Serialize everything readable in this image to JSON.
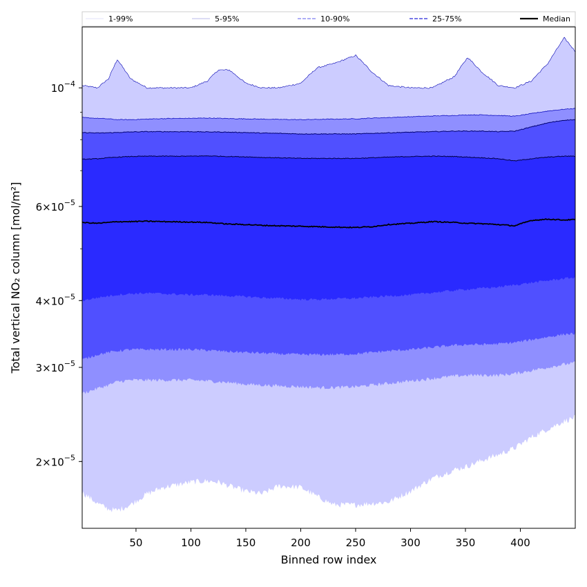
{
  "chart_data": {
    "type": "area",
    "xlabel": "Binned row index",
    "ylabel": "Total vertical NO₂ column [mol/m²]",
    "xlim": [
      1,
      450
    ],
    "ylim": [
      1.5e-05,
      0.00013
    ],
    "yscale": "log",
    "grid": false,
    "legend_position": "top",
    "x_ticks": [
      50,
      100,
      150,
      200,
      250,
      300,
      350,
      400
    ],
    "y_ticks": [
      {
        "value": 0.0001,
        "base": "10",
        "exp": "−4"
      },
      {
        "value": 6e-05,
        "mant": "6",
        "base": "10",
        "exp": "−5"
      },
      {
        "value": 4e-05,
        "mant": "4",
        "base": "10",
        "exp": "−5"
      },
      {
        "value": 3e-05,
        "mant": "3",
        "base": "10",
        "exp": "−5"
      },
      {
        "value": 2e-05,
        "mant": "2",
        "base": "10",
        "exp": "−5"
      }
    ],
    "x": [
      1,
      15,
      25,
      33,
      45,
      60,
      75,
      100,
      115,
      125,
      135,
      150,
      165,
      180,
      200,
      215,
      230,
      250,
      265,
      280,
      300,
      320,
      340,
      352,
      365,
      380,
      395,
      410,
      425,
      440,
      450
    ],
    "series": [
      {
        "name": "1-99%",
        "upper": [
          0.000101,
          0.0001,
          0.000104,
          0.000113,
          0.000104,
          0.0001,
          0.0001,
          0.0001,
          0.000103,
          0.000108,
          0.000108,
          0.000102,
          0.0001,
          0.0001,
          0.000102,
          0.000109,
          0.000111,
          0.000115,
          0.000107,
          0.000101,
          0.0001,
          0.0001,
          0.000105,
          0.000114,
          0.000107,
          0.000101,
          0.0001,
          0.000103,
          0.000111,
          0.000124,
          0.000117
        ],
        "lower": [
          1.75e-05,
          1.67e-05,
          1.63e-05,
          1.62e-05,
          1.66e-05,
          1.74e-05,
          1.79e-05,
          1.83e-05,
          1.84e-05,
          1.83e-05,
          1.8e-05,
          1.76e-05,
          1.74e-05,
          1.8e-05,
          1.79e-05,
          1.72e-05,
          1.66e-05,
          1.66e-05,
          1.67e-05,
          1.68e-05,
          1.76e-05,
          1.86e-05,
          1.93e-05,
          1.96e-05,
          2.01e-05,
          2.06e-05,
          2.12e-05,
          2.22e-05,
          2.3e-05,
          2.38e-05,
          2.42e-05
        ]
      },
      {
        "name": "5-95%",
        "upper": [
          8.8e-05,
          8.77e-05,
          8.75e-05,
          8.72e-05,
          8.72e-05,
          8.74e-05,
          8.76e-05,
          8.77e-05,
          8.78e-05,
          8.77e-05,
          8.76e-05,
          8.75e-05,
          8.74e-05,
          8.73e-05,
          8.72e-05,
          8.73e-05,
          8.74e-05,
          8.75e-05,
          8.78e-05,
          8.8e-05,
          8.83e-05,
          8.86e-05,
          8.88e-05,
          8.9e-05,
          8.9e-05,
          8.88e-05,
          8.85e-05,
          8.95e-05,
          9.05e-05,
          9.12e-05,
          9.15e-05
        ],
        "lower": [
          2.68e-05,
          2.74e-05,
          2.78e-05,
          2.82e-05,
          2.84e-05,
          2.84e-05,
          2.84e-05,
          2.84e-05,
          2.83e-05,
          2.82e-05,
          2.81e-05,
          2.79e-05,
          2.78e-05,
          2.77e-05,
          2.76e-05,
          2.75e-05,
          2.75e-05,
          2.76e-05,
          2.78e-05,
          2.8e-05,
          2.83e-05,
          2.86e-05,
          2.89e-05,
          2.9e-05,
          2.9e-05,
          2.9e-05,
          2.92e-05,
          2.96e-05,
          3e-05,
          3.04e-05,
          3.06e-05
        ]
      },
      {
        "name": "10-90%",
        "upper": [
          8.25e-05,
          8.23e-05,
          8.24e-05,
          8.25e-05,
          8.27e-05,
          8.28e-05,
          8.28e-05,
          8.28e-05,
          8.27e-05,
          8.27e-05,
          8.26e-05,
          8.25e-05,
          8.23e-05,
          8.22e-05,
          8.2e-05,
          8.2e-05,
          8.2e-05,
          8.2e-05,
          8.22e-05,
          8.24e-05,
          8.26e-05,
          8.28e-05,
          8.3e-05,
          8.3e-05,
          8.3e-05,
          8.28e-05,
          8.3e-05,
          8.45e-05,
          8.6e-05,
          8.7e-05,
          8.72e-05
        ],
        "lower": [
          3.1e-05,
          3.17e-05,
          3.2e-05,
          3.22e-05,
          3.24e-05,
          3.24e-05,
          3.24e-05,
          3.24e-05,
          3.23e-05,
          3.22e-05,
          3.21e-05,
          3.2e-05,
          3.19e-05,
          3.18e-05,
          3.17e-05,
          3.17e-05,
          3.17e-05,
          3.18e-05,
          3.2e-05,
          3.22e-05,
          3.24e-05,
          3.27e-05,
          3.3e-05,
          3.31e-05,
          3.31e-05,
          3.32e-05,
          3.34e-05,
          3.38e-05,
          3.42e-05,
          3.46e-05,
          3.47e-05
        ]
      },
      {
        "name": "25-75%",
        "upper": [
          7.35e-05,
          7.37e-05,
          7.4e-05,
          7.42e-05,
          7.44e-05,
          7.45e-05,
          7.45e-05,
          7.45e-05,
          7.46e-05,
          7.45e-05,
          7.44e-05,
          7.43e-05,
          7.41e-05,
          7.4e-05,
          7.38e-05,
          7.38e-05,
          7.38e-05,
          7.38e-05,
          7.4e-05,
          7.42e-05,
          7.44e-05,
          7.45e-05,
          7.44e-05,
          7.42e-05,
          7.4e-05,
          7.37e-05,
          7.3e-05,
          7.37e-05,
          7.42e-05,
          7.45e-05,
          7.45e-05
        ],
        "lower": [
          4e-05,
          4.05e-05,
          4.08e-05,
          4.1e-05,
          4.12e-05,
          4.13e-05,
          4.12e-05,
          4.1e-05,
          4.1e-05,
          4.09e-05,
          4.08e-05,
          4.07e-05,
          4.05e-05,
          4.04e-05,
          4.02e-05,
          4.02e-05,
          4.03e-05,
          4.04e-05,
          4.06e-05,
          4.08e-05,
          4.1e-05,
          4.14e-05,
          4.18e-05,
          4.2e-05,
          4.22e-05,
          4.24e-05,
          4.28e-05,
          4.32e-05,
          4.36e-05,
          4.4e-05,
          4.42e-05
        ]
      },
      {
        "name": "Median",
        "values": [
          5.6e-05,
          5.58e-05,
          5.6e-05,
          5.62e-05,
          5.62e-05,
          5.63e-05,
          5.62e-05,
          5.61e-05,
          5.6e-05,
          5.58e-05,
          5.56e-05,
          5.55e-05,
          5.53e-05,
          5.52e-05,
          5.51e-05,
          5.5e-05,
          5.49e-05,
          5.48e-05,
          5.5e-05,
          5.55e-05,
          5.58e-05,
          5.62e-05,
          5.6e-05,
          5.58e-05,
          5.57e-05,
          5.55e-05,
          5.52e-05,
          5.65e-05,
          5.68e-05,
          5.66e-05,
          5.67e-05
        ]
      }
    ],
    "colors": {
      "band_1_99": "#ccccff",
      "band_5_95": "#8f8fff",
      "band_10_90": "#5050ff",
      "band_25_75": "#2a2aff",
      "edge_1_99": "#0000b0",
      "edge_5_95": "#1010c0",
      "edge_10_90": "#000070",
      "edge_25_75": "#000040",
      "median": "#000000",
      "legend_1_99": "#d8d8f8",
      "legend_5_95": "#a0a0e0",
      "legend_10_90": "#7c7cf0",
      "legend_25_75": "#4a4ae0"
    }
  }
}
